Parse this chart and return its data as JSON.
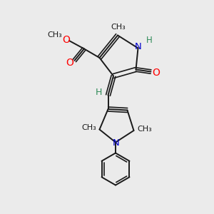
{
  "background_color": "#ebebeb",
  "bond_color": "#1a1a1a",
  "N_color": "#0000cd",
  "O_color": "#ff0000",
  "H_color": "#2e8b57",
  "figsize": [
    3.0,
    3.0
  ],
  "dpi": 100,
  "xlim": [
    0,
    10
  ],
  "ylim": [
    0,
    10
  ]
}
